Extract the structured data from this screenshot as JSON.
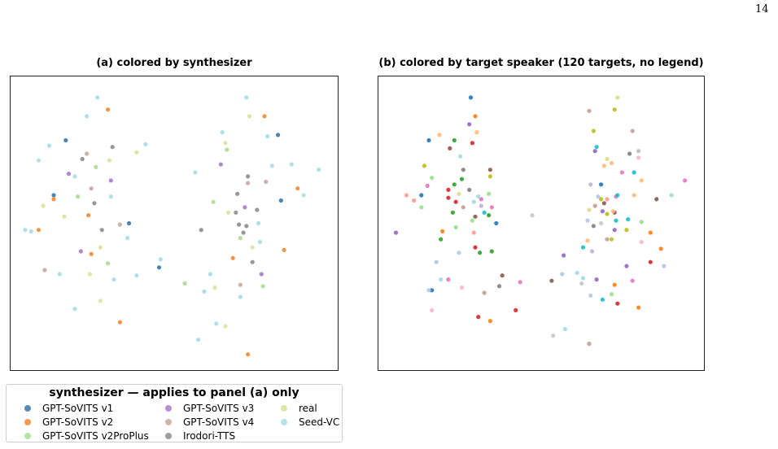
{
  "page_number": "14",
  "panels": {
    "a_title": "(a) colored by synthesizer",
    "b_title": "(b) colored by target speaker (120 targets, no legend)"
  },
  "legend": {
    "title": "synthesizer — applies to panel (a) only",
    "items": [
      {
        "label": "GPT-SoVITS v1",
        "color": "#3b76a6"
      },
      {
        "label": "GPT-SoVITS v2",
        "color": "#f28a30"
      },
      {
        "label": "GPT-SoVITS v2ProPlus",
        "color": "#a9dd92"
      },
      {
        "label": "GPT-SoVITS v3",
        "color": "#a77ccb"
      },
      {
        "label": "GPT-SoVITS v4",
        "color": "#c9a79e"
      },
      {
        "label": "Irodori-TTS",
        "color": "#8c8c8c"
      },
      {
        "label": "real",
        "color": "#dfe09a"
      },
      {
        "label": "Seed-VC",
        "color": "#a6dde6"
      }
    ]
  },
  "chart_data": [
    {
      "type": "scatter",
      "title": "(a) colored by synthesizer",
      "xlabel": "",
      "ylabel": "",
      "axes_ticks": "none",
      "legend_placement": "below",
      "series": [
        {
          "name": "GPT-SoVITS v1",
          "color": "#3b76a6",
          "points": [
            [
              -0.72,
              0.62
            ],
            [
              -0.8,
              0.21
            ],
            [
              0.69,
              0.66
            ],
            [
              -0.1,
              -0.33
            ],
            [
              -0.3,
              0.0
            ],
            [
              0.71,
              0.17
            ]
          ]
        },
        {
          "name": "GPT-SoVITS v2",
          "color": "#f28a30",
          "points": [
            [
              -0.8,
              0.18
            ],
            [
              -0.55,
              -0.23
            ],
            [
              -0.9,
              -0.05
            ],
            [
              -0.44,
              0.85
            ],
            [
              0.39,
              -0.26
            ],
            [
              -0.36,
              -0.74
            ],
            [
              0.49,
              -0.98
            ],
            [
              0.82,
              0.26
            ],
            [
              0.73,
              -0.2
            ],
            [
              -0.57,
              0.06
            ],
            [
              0.6,
              0.8
            ]
          ]
        },
        {
          "name": "GPT-SoVITS v2ProPlus",
          "color": "#a9dd92",
          "points": [
            [
              -0.64,
              0.2
            ],
            [
              -0.44,
              -0.3
            ],
            [
              0.26,
              0.16
            ],
            [
              0.44,
              -0.11
            ],
            [
              -0.52,
              0.42
            ],
            [
              0.07,
              -0.45
            ],
            [
              0.59,
              -0.47
            ],
            [
              0.35,
              0.55
            ]
          ]
        },
        {
          "name": "GPT-SoVITS v3",
          "color": "#a77ccb",
          "points": [
            [
              -0.42,
              0.32
            ],
            [
              0.31,
              0.44
            ],
            [
              -0.62,
              -0.21
            ],
            [
              0.47,
              0.12
            ],
            [
              -0.7,
              0.37
            ],
            [
              0.58,
              -0.38
            ]
          ]
        },
        {
          "name": "GPT-SoVITS v4",
          "color": "#c9a79e",
          "points": [
            [
              -0.58,
              0.52
            ],
            [
              0.49,
              0.3
            ],
            [
              -0.36,
              -0.01
            ],
            [
              0.61,
              0.31
            ],
            [
              -0.86,
              -0.35
            ],
            [
              0.44,
              -0.46
            ],
            [
              -0.55,
              0.26
            ]
          ]
        },
        {
          "name": "Irodori-TTS",
          "color": "#8c8c8c",
          "points": [
            [
              0.43,
              -0.01
            ],
            [
              0.48,
              -0.02
            ],
            [
              0.55,
              0.1
            ],
            [
              0.41,
              0.08
            ],
            [
              0.46,
              -0.07
            ],
            [
              0.42,
              0.22
            ],
            [
              0.49,
              0.35
            ],
            [
              -0.53,
              0.15
            ],
            [
              -0.48,
              -0.05
            ],
            [
              -0.61,
              0.48
            ],
            [
              0.18,
              -0.05
            ],
            [
              0.52,
              -0.29
            ],
            [
              -0.41,
              0.57
            ]
          ]
        },
        {
          "name": "real",
          "color": "#dfe09a",
          "points": [
            [
              -0.43,
              0.47
            ],
            [
              -0.49,
              -0.18
            ],
            [
              0.34,
              0.6
            ],
            [
              -0.73,
              0.05
            ],
            [
              0.52,
              -0.18
            ],
            [
              -0.56,
              -0.38
            ],
            [
              -0.25,
              0.53
            ],
            [
              0.5,
              0.8
            ],
            [
              -0.87,
              0.13
            ],
            [
              0.27,
              -0.48
            ],
            [
              0.36,
              0.08
            ],
            [
              -0.49,
              -0.58
            ],
            [
              0.34,
              -0.77
            ]
          ]
        },
        {
          "name": "Seed-VC",
          "color": "#a6dde6",
          "points": [
            [
              -0.51,
              0.94
            ],
            [
              0.48,
              0.94
            ],
            [
              -0.83,
              0.58
            ],
            [
              0.86,
              0.21
            ],
            [
              -0.58,
              0.8
            ],
            [
              0.65,
              0.43
            ],
            [
              -0.99,
              -0.05
            ],
            [
              -0.19,
              0.59
            ],
            [
              -0.42,
              0.2
            ],
            [
              0.78,
              0.44
            ],
            [
              -0.76,
              -0.38
            ],
            [
              0.2,
              -0.51
            ],
            [
              -0.66,
              -0.64
            ],
            [
              -0.4,
              -0.42
            ],
            [
              0.57,
              -0.14
            ],
            [
              0.14,
              0.38
            ],
            [
              -0.09,
              -0.27
            ],
            [
              0.96,
              0.4
            ],
            [
              -0.9,
              0.47
            ],
            [
              -0.95,
              -0.06
            ],
            [
              -0.25,
              -0.39
            ],
            [
              0.32,
              0.68
            ],
            [
              0.56,
              0.0
            ],
            [
              -0.31,
              -0.11
            ],
            [
              0.62,
              0.65
            ],
            [
              -0.66,
              0.35
            ],
            [
              0.44,
              -0.55
            ],
            [
              0.24,
              -0.38
            ],
            [
              0.16,
              -0.87
            ],
            [
              0.28,
              -0.75
            ]
          ]
        }
      ]
    },
    {
      "type": "scatter",
      "title": "(b) colored by target speaker (120 targets, no legend)",
      "xlabel": "",
      "ylabel": "",
      "axes_ticks": "none",
      "legend": "none",
      "series": [
        {
          "color": "#1f77b4",
          "points": [
            [
              -0.47,
              0.94
            ],
            [
              -0.75,
              0.62
            ],
            [
              -0.3,
              0.0
            ],
            [
              -0.73,
              -0.5
            ],
            [
              0.4,
              0.29
            ],
            [
              -0.8,
              0.21
            ]
          ]
        },
        {
          "color": "#ff7f0e",
          "points": [
            [
              -0.66,
              -0.06
            ],
            [
              -0.34,
              -0.73
            ],
            [
              0.8,
              -0.19
            ],
            [
              0.73,
              -0.07
            ],
            [
              -0.44,
              0.8
            ],
            [
              0.49,
              -0.46
            ],
            [
              0.65,
              -0.63
            ]
          ]
        },
        {
          "color": "#2ca02c",
          "points": [
            [
              -0.58,
              0.29
            ],
            [
              -0.53,
              0.33
            ],
            [
              -0.59,
              0.08
            ],
            [
              -0.33,
              -0.21
            ],
            [
              -0.35,
              0.06
            ],
            [
              -0.67,
              -0.12
            ],
            [
              -0.41,
              -0.22
            ],
            [
              -0.58,
              0.62
            ]
          ]
        },
        {
          "color": "#d62728",
          "points": [
            [
              -0.62,
              0.19
            ],
            [
              -0.57,
              0.16
            ],
            [
              -0.44,
              -0.18
            ],
            [
              0.51,
              -0.6
            ],
            [
              0.73,
              -0.29
            ],
            [
              -0.46,
              0.6
            ],
            [
              -0.17,
              -0.65
            ],
            [
              -0.42,
              -0.7
            ],
            [
              -0.62,
              0.25
            ]
          ]
        },
        {
          "color": "#9467bd",
          "points": [
            [
              -0.97,
              -0.07
            ],
            [
              -0.48,
              0.74
            ],
            [
              0.41,
              0.09
            ],
            [
              0.37,
              -0.42
            ],
            [
              0.15,
              -0.24
            ],
            [
              0.49,
              -0.05
            ],
            [
              0.57,
              -0.32
            ],
            [
              0.36,
              0.54
            ]
          ]
        },
        {
          "color": "#8c564b",
          "points": [
            [
              -0.61,
              0.56
            ],
            [
              0.42,
              0.15
            ],
            [
              -0.44,
              0.05
            ],
            [
              0.77,
              0.18
            ],
            [
              -0.34,
              0.4
            ],
            [
              0.07,
              -0.43
            ],
            [
              0.49,
              0.08
            ],
            [
              -0.26,
              -0.39
            ]
          ]
        },
        {
          "color": "#e377c2",
          "points": [
            [
              -0.14,
              -0.44
            ],
            [
              0.96,
              0.32
            ],
            [
              0.54,
              0.38
            ],
            [
              0.61,
              -0.43
            ],
            [
              -0.62,
              -0.42
            ],
            [
              -0.33,
              0.12
            ],
            [
              -0.4,
              0.18
            ],
            [
              -0.76,
              0.28
            ],
            [
              0.5,
              0.2
            ]
          ]
        },
        {
          "color": "#7f7f7f",
          "points": [
            [
              -0.48,
              0.25
            ],
            [
              0.35,
              -0.02
            ],
            [
              0.59,
              0.52
            ],
            [
              -0.28,
              -0.47
            ],
            [
              -0.52,
              0.4
            ]
          ]
        },
        {
          "color": "#bcbd22",
          "points": [
            [
              0.35,
              0.69
            ],
            [
              0.4,
              0.18
            ],
            [
              0.44,
              0.07
            ],
            [
              0.47,
              -0.12
            ],
            [
              -0.78,
              0.43
            ],
            [
              0.49,
              0.85
            ],
            [
              0.57,
              -0.05
            ],
            [
              -0.34,
              0.35
            ]
          ]
        },
        {
          "color": "#17becf",
          "points": [
            [
              0.37,
              0.57
            ],
            [
              0.5,
              0.02
            ],
            [
              0.41,
              -0.57
            ],
            [
              0.28,
              -0.18
            ],
            [
              -0.38,
              0.08
            ],
            [
              0.51,
              0.21
            ],
            [
              0.58,
              0.03
            ],
            [
              0.62,
              0.38
            ]
          ]
        },
        {
          "color": "#aec7e8",
          "points": [
            [
              -0.7,
              -0.29
            ],
            [
              0.82,
              -0.32
            ],
            [
              0.31,
              0.02
            ],
            [
              0.14,
              -0.38
            ],
            [
              0.33,
              -0.54
            ],
            [
              -0.55,
              -0.22
            ],
            [
              -0.75,
              -0.5
            ],
            [
              0.38,
              0.2
            ]
          ]
        },
        {
          "color": "#ffbb78",
          "points": [
            [
              -0.68,
              0.66
            ],
            [
              0.62,
              0.21
            ],
            [
              0.31,
              -0.13
            ],
            [
              0.48,
              0.09
            ],
            [
              0.47,
              0.45
            ],
            [
              0.42,
              0.43
            ],
            [
              -0.43,
              0.68
            ],
            [
              0.67,
              0.32
            ]
          ]
        },
        {
          "color": "#98df8a",
          "points": [
            [
              -0.8,
              0.12
            ],
            [
              0.67,
              0.01
            ],
            [
              -0.46,
              0.02
            ],
            [
              -0.73,
              0.34
            ],
            [
              0.47,
              -0.53
            ],
            [
              -0.35,
              0.22
            ],
            [
              -0.57,
              -0.03
            ]
          ]
        },
        {
          "color": "#ff9896",
          "points": [
            [
              -0.9,
              0.21
            ],
            [
              -0.85,
              0.17
            ],
            [
              -0.45,
              -0.07
            ],
            [
              0.44,
              0.18
            ]
          ]
        },
        {
          "color": "#c5b0d5",
          "points": [
            [
              0.33,
              0.29
            ],
            [
              0.65,
              0.54
            ],
            [
              -0.4,
              0.13
            ],
            [
              0.34,
              -0.21
            ]
          ]
        },
        {
          "color": "#c49c94",
          "points": [
            [
              0.32,
              0.84
            ],
            [
              0.61,
              0.69
            ],
            [
              0.36,
              0.13
            ],
            [
              -0.52,
              0.12
            ],
            [
              -0.38,
              -0.52
            ],
            [
              0.32,
              -0.9
            ],
            [
              0.44,
              -0.12
            ]
          ]
        },
        {
          "color": "#f7b6d2",
          "points": [
            [
              0.65,
              0.49
            ],
            [
              0.67,
              -0.14
            ],
            [
              -0.73,
              -0.65
            ],
            [
              -0.53,
              -0.48
            ]
          ]
        },
        {
          "color": "#c7c7c7",
          "points": [
            [
              -0.06,
              0.06
            ],
            [
              0.08,
              -0.84
            ],
            [
              0.4,
              0.0
            ],
            [
              0.27,
              -0.45
            ]
          ]
        },
        {
          "color": "#dbdb8d",
          "points": [
            [
              0.51,
              0.94
            ],
            [
              0.32,
              0.1
            ],
            [
              -0.55,
              0.22
            ],
            [
              0.44,
              0.48
            ]
          ]
        },
        {
          "color": "#9edae5",
          "points": [
            [
              -0.42,
              0.2
            ],
            [
              -0.45,
              0.16
            ],
            [
              0.24,
              -0.37
            ],
            [
              0.28,
              -0.41
            ],
            [
              -0.54,
              0.5
            ],
            [
              0.87,
              0.21
            ],
            [
              0.16,
              -0.79
            ],
            [
              -0.67,
              -0.42
            ]
          ]
        }
      ]
    }
  ]
}
